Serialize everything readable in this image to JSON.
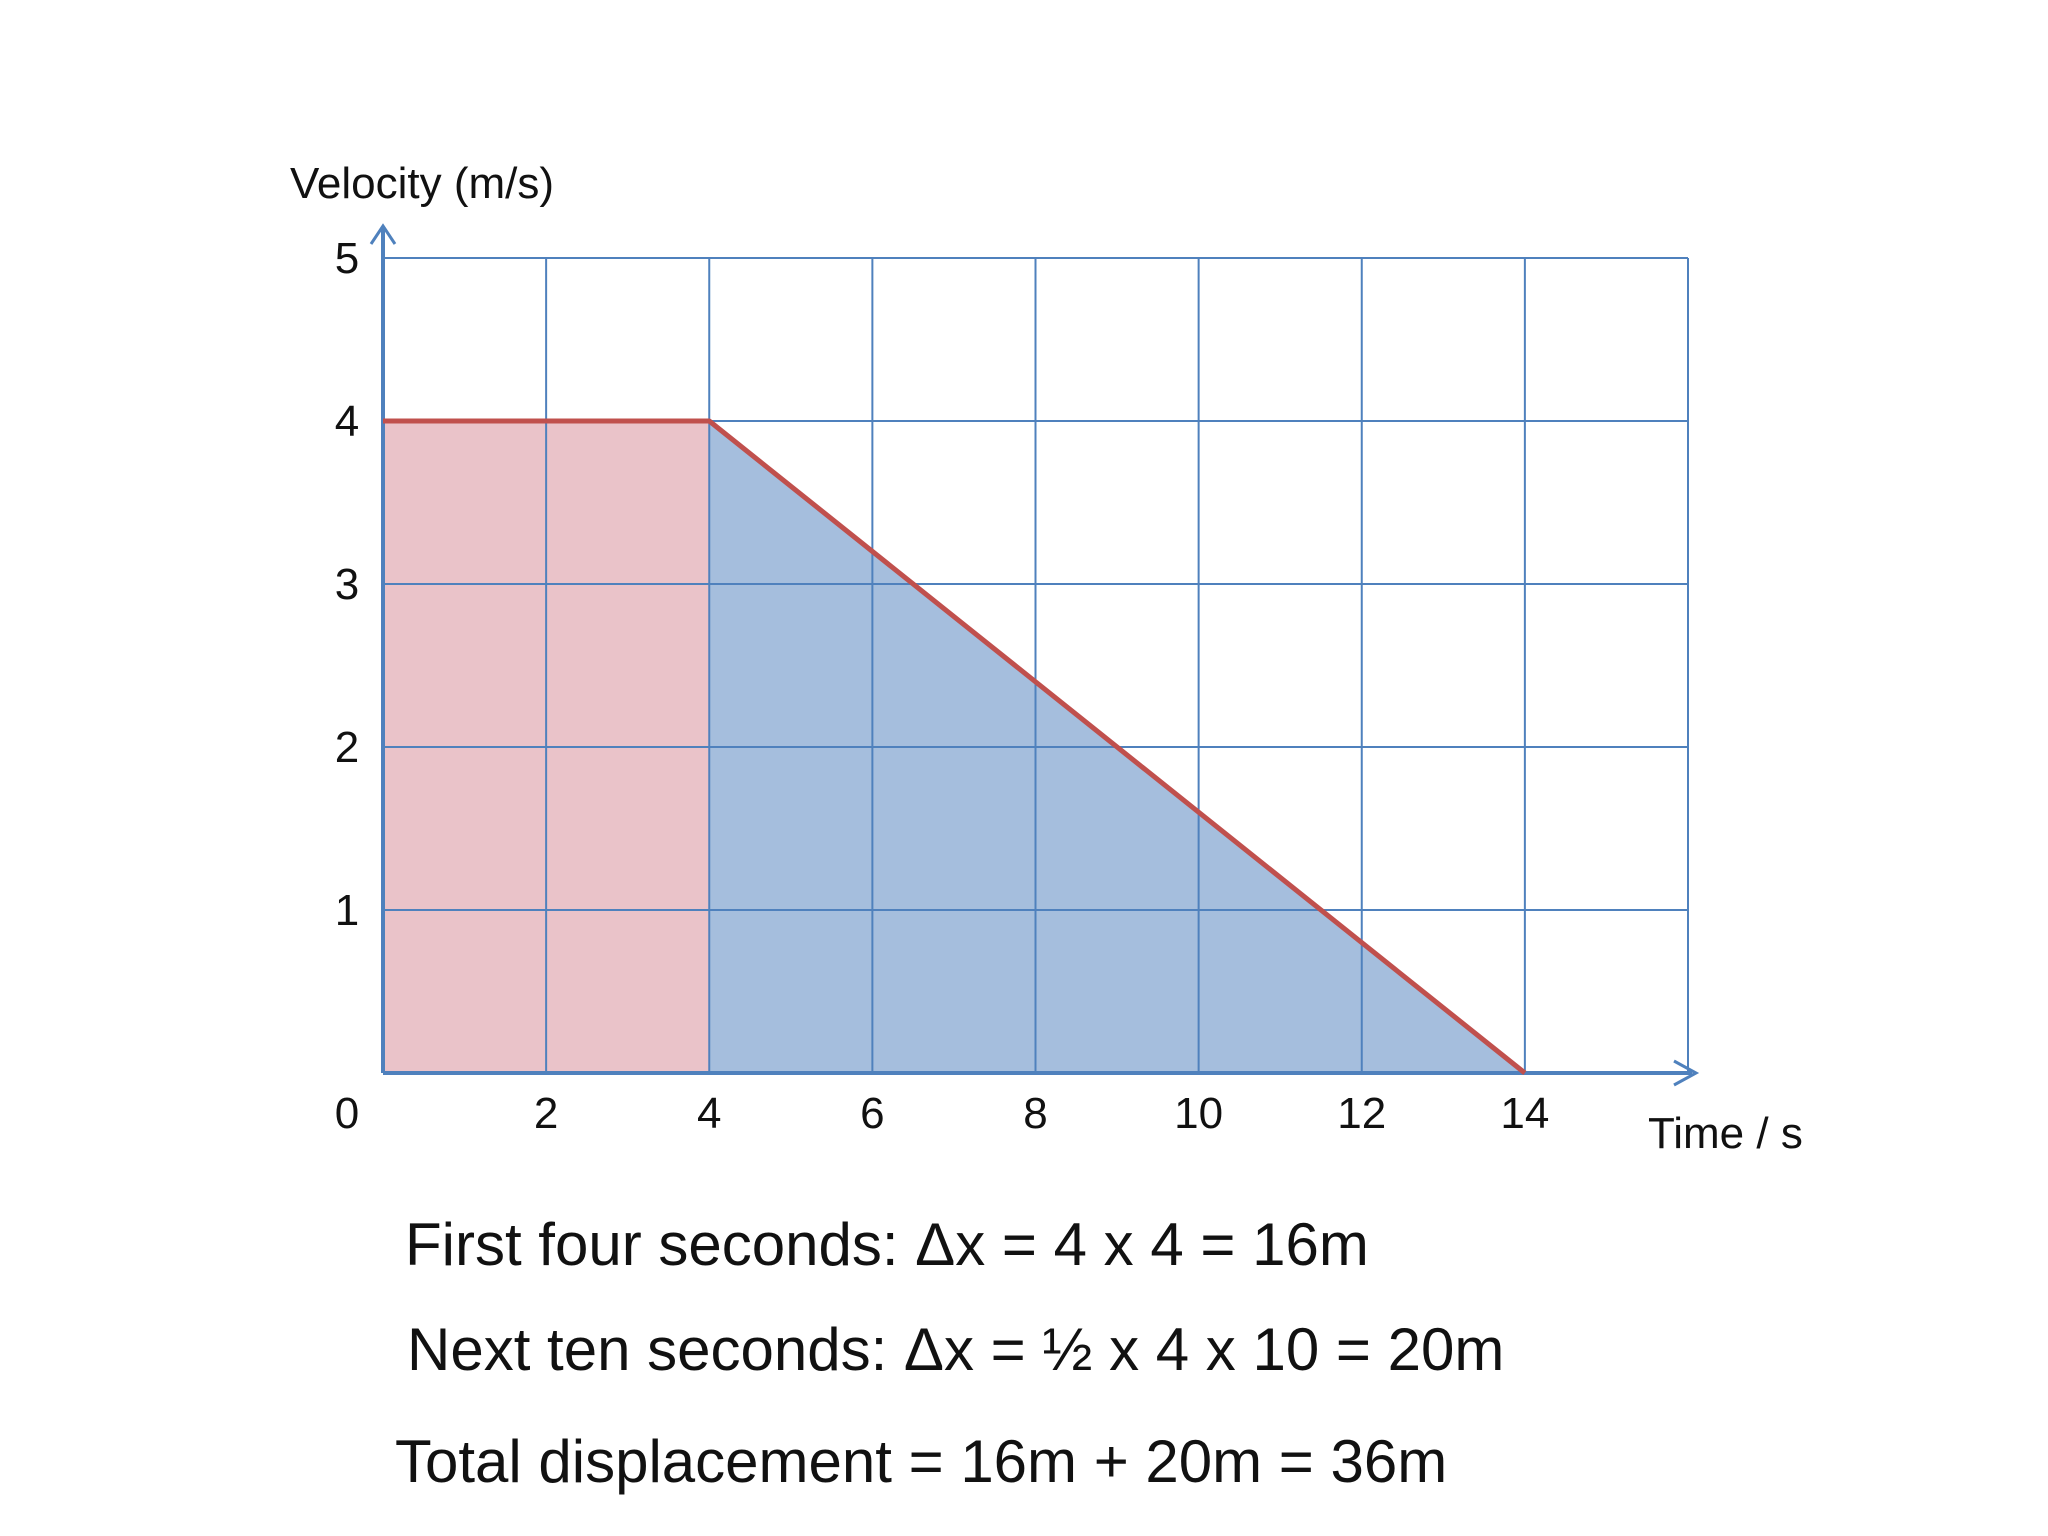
{
  "chart_data": {
    "type": "line",
    "xlabel": "Time / s",
    "ylabel": "Velocity (m/s)",
    "xlim": [
      0,
      16
    ],
    "ylim": [
      0,
      5
    ],
    "x_ticks": [
      0,
      2,
      4,
      6,
      8,
      10,
      12,
      14
    ],
    "y_ticks": [
      1,
      2,
      3,
      4,
      5
    ],
    "grid": true,
    "series": [
      {
        "x": [
          0,
          4,
          14
        ],
        "y": [
          4,
          4,
          0
        ],
        "color": "#c0504d"
      }
    ],
    "shaded_regions": [
      {
        "x": [
          0,
          4,
          4,
          0
        ],
        "y": [
          0,
          0,
          4,
          4
        ],
        "color": "#e6b9bf"
      },
      {
        "x": [
          4,
          14,
          4
        ],
        "y": [
          0,
          0,
          4
        ],
        "color": "#95b3d7"
      }
    ],
    "colors": {
      "grid": "#4f81bd",
      "axis": "#4f81bd",
      "line": "#c0504d"
    }
  },
  "captions": [
    "First four seconds: Δx = 4 x 4 = 16m",
    "Next ten seconds: Δx = ½ x 4 x 10 = 20m",
    "Total displacement = 16m + 20m = 36m"
  ]
}
